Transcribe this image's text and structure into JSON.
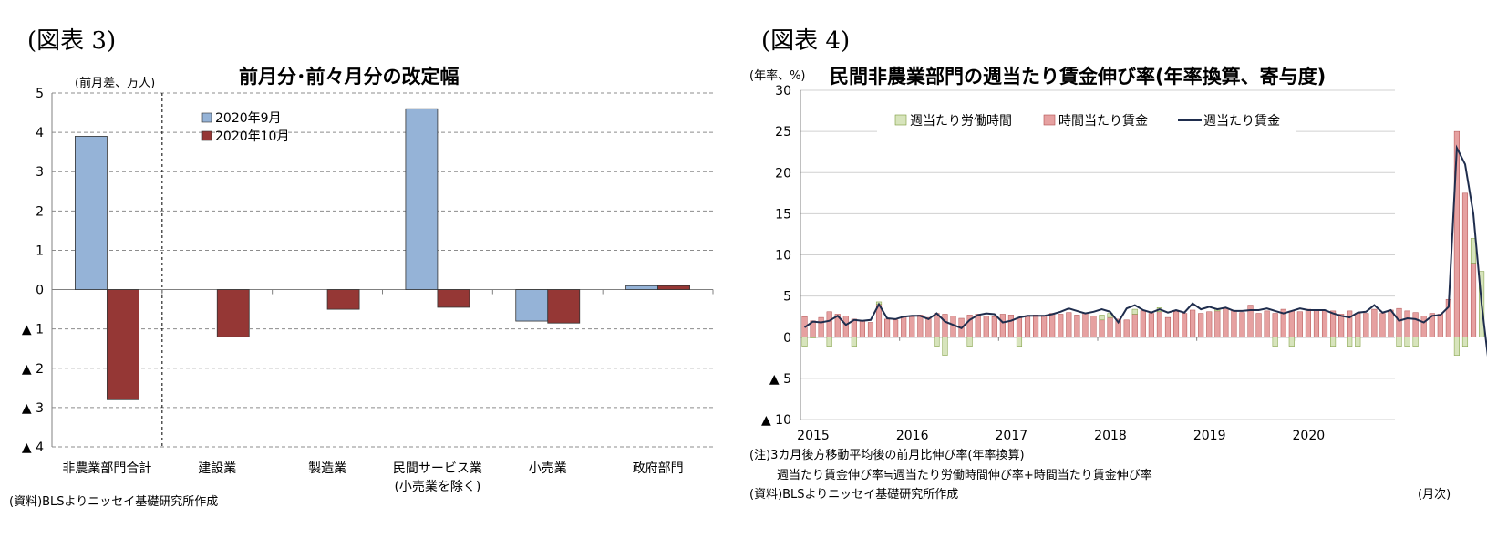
{
  "left": {
    "fig_label": "(図表 3)",
    "title": "前月分･前々月分の改定幅",
    "unit": "(前月差、万人)",
    "source": "(資料)BLSよりニッセイ基礎研究所作成",
    "category_sublabel": "(小売業を除く)"
  },
  "right": {
    "fig_label": "(図表 4)",
    "title": "民間非農業部門の週当たり賃金伸び率(年率換算、寄与度)",
    "unit": "(年率、%)",
    "note1": "(注)3カ月後方移動平均後の前月比伸び率(年率換算)",
    "note2": "週当たり賃金伸び率≒週当たり労働時間伸び率+時間当たり賃金伸び率",
    "source": "(資料)BLSよりニッセイ基礎研究所作成",
    "xunit": "(月次)"
  },
  "chart_data": [
    {
      "type": "bar",
      "title": "前月分･前々月分の改定幅",
      "ylabel": "(前月差、万人)",
      "ylim": [
        -4,
        5
      ],
      "ytick_values": [
        5,
        4,
        3,
        2,
        1,
        0,
        -1,
        -2,
        -3,
        -4
      ],
      "ytick_labels": [
        "5",
        "4",
        "3",
        "2",
        "1",
        "0",
        "▲ 1",
        "▲ 2",
        "▲ 3",
        "▲ 4"
      ],
      "categories": [
        "非農業部門合計",
        "建設業",
        "製造業",
        "民間サービス業",
        "小売業",
        "政府部門"
      ],
      "series": [
        {
          "name": "2020年9月",
          "color": "#95b3d7",
          "values": [
            3.9,
            0.0,
            0.0,
            4.6,
            -0.8,
            0.1
          ]
        },
        {
          "name": "2020年10月",
          "color": "#953735",
          "values": [
            -2.8,
            -1.2,
            -0.5,
            -0.45,
            -0.85,
            0.1
          ]
        }
      ],
      "legend_position": "top-left",
      "grid": true
    },
    {
      "type": "bar",
      "title": "民間非農業部門の週当たり賃金伸び率(年率換算、寄与度)",
      "ylabel": "(年率、%)",
      "ylim": [
        -10,
        30
      ],
      "ytick_values": [
        30,
        25,
        20,
        15,
        10,
        5,
        0,
        -5,
        -10
      ],
      "ytick_labels": [
        "30",
        "25",
        "20",
        "15",
        "10",
        "5",
        "0",
        "▲ 5",
        "▲ 10"
      ],
      "x_start": "2015-01",
      "x_tick_labels": [
        "2015",
        "2016",
        "2017",
        "2018",
        "2019",
        "2020"
      ],
      "stacked": true,
      "series": [
        {
          "name": "週当たり労働時間",
          "kind": "bar",
          "color": "#c4d79b",
          "values": [
            -1.1,
            -0.1,
            0.0,
            -1.1,
            0.0,
            0.0,
            -1.1,
            0.0,
            0.0,
            0.0,
            0.0,
            0.0,
            0.0,
            0.0,
            0.0,
            0.0,
            0.0,
            0.0,
            0.0,
            0.0,
            0.0,
            0.0,
            0.0,
            0.0,
            0.0,
            0.0,
            0.0,
            0.0,
            0.0,
            -1.1,
            -2.2,
            0.0,
            0.0,
            -1.1,
            0.0,
            0.0,
            0.0,
            0.0,
            0.0,
            0.0,
            0.0,
            -1.1,
            0.0,
            0.0,
            0.0,
            0.0,
            0.0,
            0.0,
            0.0,
            0.0,
            0.0,
            0.0,
            0.0,
            0.0,
            0.0,
            0.0,
            0.0,
            0.0,
            0.0,
            0.0,
            0.0,
            0.0,
            0.0,
            0.0,
            0.0,
            0.0,
            0.0,
            0.0,
            0.0,
            0.0,
            0.0,
            0.0,
            0.0,
            0.0,
            0.0,
            0.0,
            0.0,
            0.0,
            0.0,
            0.0,
            0.0,
            0.0,
            0.0,
            0.0,
            0.0,
            0.0,
            0.0,
            0.0,
            0.0,
            0.0,
            0.0,
            0.0,
            0.0,
            0.0,
            0.0,
            0.0,
            0.0,
            0.0,
            0.0,
            0.0,
            0.0,
            0.0,
            0.0,
            0.0,
            0.0,
            0.0,
            0.0,
            0.0,
            0.0,
            0.0,
            0.0,
            0.0,
            0.0,
            0.0,
            0.0,
            0.0,
            0.0,
            0.0,
            0.0,
            0.0,
            0.0,
            0.0,
            0.0,
            0.0,
            0.0,
            0.0,
            0.0,
            0.0,
            0.0,
            0.0,
            0.0,
            0.0,
            0.0,
            0.0,
            0.0,
            0.0,
            0.0,
            0.0,
            0.0,
            0.0,
            0.0,
            0.0,
            0.0,
            0.0,
            0.0,
            0.0,
            0.0,
            0.0,
            0.0,
            0.0
          ]
        }
      ],
      "grid": true,
      "legend_position": "top"
    }
  ]
}
